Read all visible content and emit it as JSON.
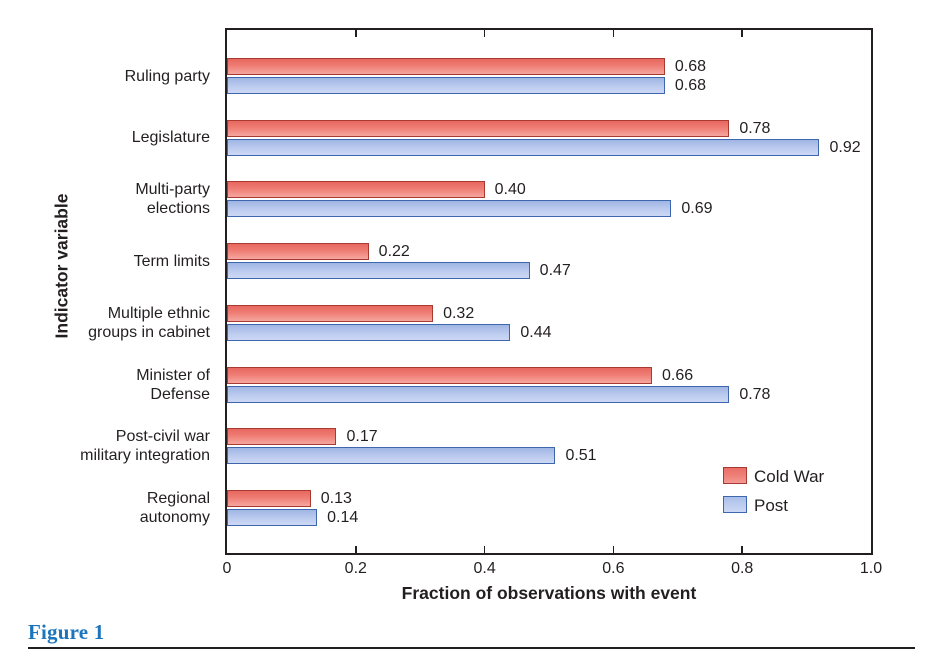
{
  "figure_caption": {
    "label": "Figure 1",
    "color": "#1c75bc"
  },
  "chart_data": {
    "type": "bar",
    "orientation": "horizontal",
    "title": "",
    "categories": [
      "Ruling party",
      "Legislature",
      "Multi-party\nelections",
      "Term limits",
      "Multiple ethnic\ngroups in cabinet",
      "Minister of\nDefense",
      "Post-civil war\nmilitary integration",
      "Regional\nautonomy"
    ],
    "series": [
      {
        "name": "Cold War",
        "fill": "#ee7d74",
        "border": "#a93a31",
        "values": [
          0.68,
          0.78,
          0.4,
          0.22,
          0.32,
          0.66,
          0.17,
          0.13
        ]
      },
      {
        "name": "Post",
        "fill": "#bccbef",
        "border": "#3e66ae",
        "values": [
          0.68,
          0.92,
          0.69,
          0.47,
          0.44,
          0.78,
          0.51,
          0.14
        ]
      }
    ],
    "xlabel": "Fraction of observations with event",
    "ylabel": "Indicator variable",
    "xlim": [
      0,
      1.0
    ],
    "xtick_values": [
      0,
      0.2,
      0.4,
      0.6,
      0.8,
      1.0
    ],
    "xtick_labels": [
      "0",
      "0.2",
      "0.4",
      "0.6",
      "0.8",
      "1.0"
    ],
    "bar_value_labels": true,
    "value_label_format": "0.00",
    "legend": {
      "position": "inside-bottom-right",
      "entries": [
        "Cold War",
        "Post"
      ]
    },
    "grid": false,
    "frame": true
  }
}
